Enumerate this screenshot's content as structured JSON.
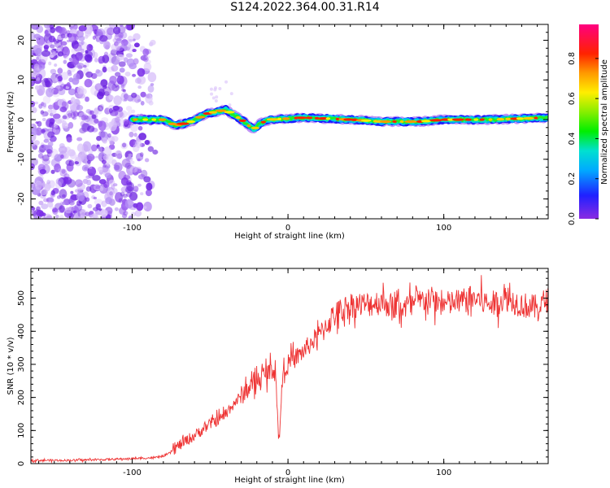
{
  "title": "S124.2022.364.00.31.R14",
  "chart_data": [
    {
      "type": "heatmap",
      "xlabel": "Height of straight line (km)",
      "ylabel": "Frequency (Hz)",
      "xlim": [
        -165,
        167
      ],
      "ylim": [
        -25,
        24
      ],
      "xticks": [
        -100,
        0,
        100
      ],
      "yticks": [
        -20,
        -10,
        0,
        10,
        20
      ],
      "colorbar": {
        "label": "Normalized spectral amplitude",
        "range": [
          0.0,
          0.97
        ],
        "ticks": [
          0.0,
          0.2,
          0.4,
          0.6,
          0.8
        ],
        "tick_labels": [
          "0.0",
          "0.2",
          "0.4",
          "0.6",
          "0.8"
        ]
      },
      "ridge": {
        "description_points": [
          {
            "x": -100,
            "y": 0
          },
          {
            "x": -80,
            "y": 0
          },
          {
            "x": -72,
            "y": -1.5
          },
          {
            "x": -62,
            "y": -0.5
          },
          {
            "x": -52,
            "y": 1.5
          },
          {
            "x": -40,
            "y": 2.5
          },
          {
            "x": -30,
            "y": 0
          },
          {
            "x": -22,
            "y": -2.5
          },
          {
            "x": -18,
            "y": -1
          },
          {
            "x": -12,
            "y": 0
          },
          {
            "x": 10,
            "y": 0.5
          },
          {
            "x": 40,
            "y": 0
          },
          {
            "x": 60,
            "y": -0.5
          },
          {
            "x": 85,
            "y": -0.5
          },
          {
            "x": 100,
            "y": 0
          },
          {
            "x": 130,
            "y": 0
          },
          {
            "x": 167,
            "y": 0.5
          }
        ]
      },
      "noise_region_x": [
        -165,
        -85
      ]
    },
    {
      "type": "line",
      "xlabel": "Height of straight line (km)",
      "ylabel": "SNR (10 * v/v)",
      "xlim": [
        -165,
        167
      ],
      "ylim": [
        0,
        590
      ],
      "xticks": [
        -100,
        0,
        100
      ],
      "yticks": [
        0,
        100,
        200,
        300,
        400,
        500
      ],
      "color": "#ee3333",
      "series": [
        {
          "x": [
            -165,
            -140,
            -120,
            -100,
            -85,
            -78,
            -70,
            -60,
            -50,
            -42,
            -35,
            -25,
            -15,
            -8,
            -6,
            -3,
            0,
            10,
            20,
            30,
            40,
            50,
            60,
            70,
            80,
            90,
            100,
            110,
            120,
            130,
            140,
            150,
            160,
            167
          ],
          "y": [
            10,
            10,
            12,
            15,
            18,
            25,
            55,
            85,
            120,
            140,
            180,
            230,
            270,
            290,
            60,
            290,
            300,
            340,
            390,
            450,
            480,
            480,
            490,
            470,
            480,
            500,
            480,
            490,
            500,
            480,
            500,
            480,
            470,
            500
          ]
        }
      ]
    }
  ]
}
